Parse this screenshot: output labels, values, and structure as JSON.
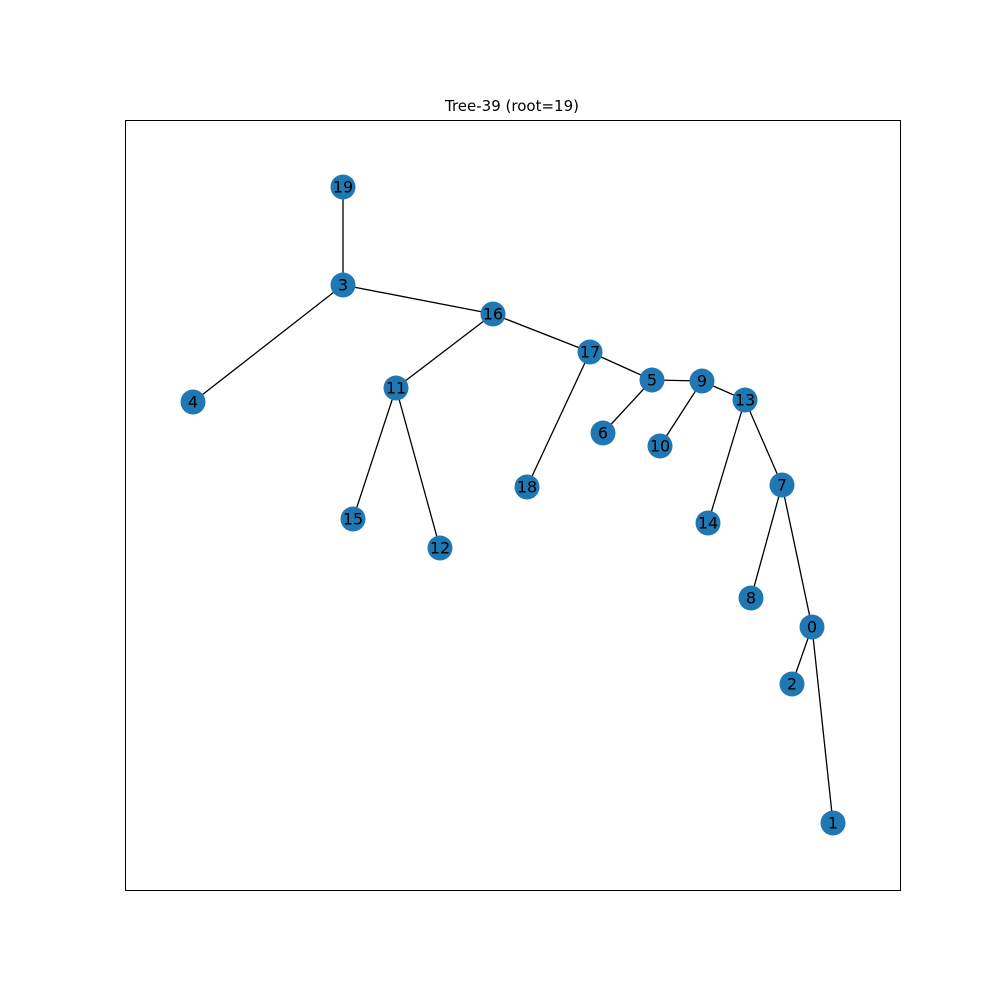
{
  "title": "Tree-39 (root=19)",
  "colors": {
    "node_fill": "#1f77b4",
    "edge": "#000000",
    "frame": "#000000",
    "background": "#ffffff"
  },
  "graph": {
    "nodes": [
      "19",
      "3",
      "4",
      "16",
      "11",
      "15",
      "12",
      "17",
      "18",
      "5",
      "6",
      "9",
      "10",
      "13",
      "14",
      "7",
      "8",
      "0",
      "2",
      "1"
    ],
    "edges": [
      [
        "19",
        "3"
      ],
      [
        "3",
        "4"
      ],
      [
        "3",
        "16"
      ],
      [
        "16",
        "11"
      ],
      [
        "11",
        "15"
      ],
      [
        "11",
        "12"
      ],
      [
        "16",
        "17"
      ],
      [
        "17",
        "18"
      ],
      [
        "17",
        "5"
      ],
      [
        "5",
        "6"
      ],
      [
        "5",
        "9"
      ],
      [
        "9",
        "10"
      ],
      [
        "9",
        "13"
      ],
      [
        "13",
        "14"
      ],
      [
        "13",
        "7"
      ],
      [
        "7",
        "8"
      ],
      [
        "7",
        "0"
      ],
      [
        "0",
        "2"
      ],
      [
        "0",
        "1"
      ]
    ]
  }
}
